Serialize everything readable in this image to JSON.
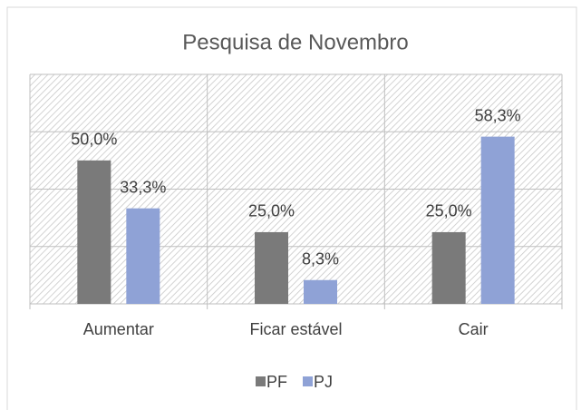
{
  "chart_data": {
    "type": "bar",
    "title": "Pesquisa de Novembro",
    "categories": [
      "Aumentar",
      "Ficar estável",
      "Cair"
    ],
    "series": [
      {
        "name": "PF",
        "color": "#7a7a7a",
        "values": [
          50,
          25,
          25
        ],
        "value_labels": [
          "50,0%",
          "25,0%",
          "25,0%"
        ]
      },
      {
        "name": "PJ",
        "color": "#8fa2d6",
        "values": [
          33.3,
          8.3,
          58.3
        ],
        "value_labels": [
          "33,3%",
          "8,3%",
          "58,3%"
        ]
      }
    ],
    "ylim": [
      0,
      80
    ],
    "yticks": [
      0,
      20,
      40,
      60,
      80
    ],
    "grid": true,
    "legend": "bottom"
  }
}
